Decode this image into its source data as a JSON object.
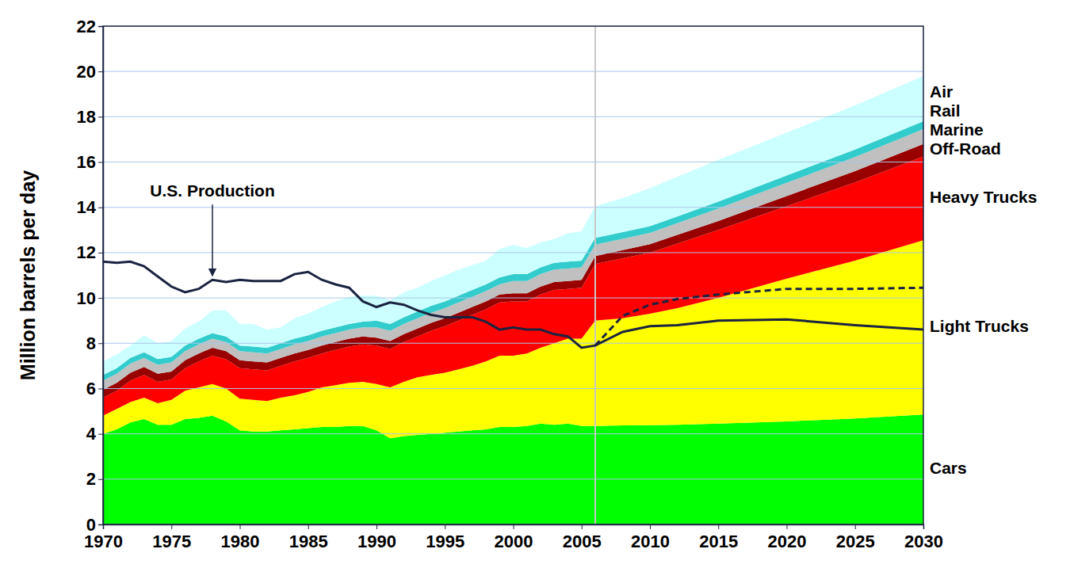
{
  "chart_data": {
    "type": "area",
    "stacked": true,
    "grid": true,
    "ylabel": "Million barrels per day",
    "x": [
      1970,
      1971,
      1972,
      1973,
      1974,
      1975,
      1976,
      1977,
      1978,
      1979,
      1980,
      1981,
      1982,
      1983,
      1984,
      1985,
      1986,
      1987,
      1988,
      1989,
      1990,
      1991,
      1992,
      1993,
      1994,
      1995,
      1996,
      1997,
      1998,
      1999,
      2000,
      2001,
      2002,
      2003,
      2004,
      2005,
      2006,
      2008,
      2010,
      2012,
      2015,
      2020,
      2025,
      2030
    ],
    "xlim": [
      1970,
      2030
    ],
    "xticks": [
      1970,
      1975,
      1980,
      1985,
      1990,
      1995,
      2000,
      2005,
      2010,
      2015,
      2020,
      2025,
      2030
    ],
    "ylim": [
      0,
      22
    ],
    "yticks": [
      0,
      2,
      4,
      6,
      8,
      10,
      12,
      14,
      16,
      18,
      20,
      22
    ],
    "divider": 2006,
    "series": [
      {
        "name": "Cars",
        "color": "#00ff00",
        "type": "area",
        "values": [
          4.0,
          4.2,
          4.5,
          4.65,
          4.4,
          4.4,
          4.65,
          4.7,
          4.8,
          4.55,
          4.15,
          4.1,
          4.1,
          4.15,
          4.2,
          4.25,
          4.3,
          4.3,
          4.35,
          4.35,
          4.15,
          3.8,
          3.9,
          3.95,
          4.0,
          4.05,
          4.1,
          4.15,
          4.2,
          4.3,
          4.3,
          4.35,
          4.45,
          4.4,
          4.45,
          4.35,
          4.35,
          4.37,
          4.38,
          4.4,
          4.45,
          4.55,
          4.68,
          4.85
        ]
      },
      {
        "name": "Light Trucks",
        "color": "#ffff00",
        "type": "area",
        "values": [
          0.8,
          0.9,
          0.9,
          0.95,
          0.95,
          1.1,
          1.25,
          1.35,
          1.4,
          1.45,
          1.4,
          1.4,
          1.35,
          1.45,
          1.5,
          1.6,
          1.75,
          1.85,
          1.9,
          1.95,
          2.05,
          2.25,
          2.4,
          2.55,
          2.6,
          2.65,
          2.75,
          2.85,
          3.0,
          3.15,
          3.15,
          3.2,
          3.35,
          3.6,
          3.75,
          3.85,
          4.65,
          4.73,
          4.92,
          5.15,
          5.55,
          6.3,
          6.97,
          7.7
        ]
      },
      {
        "name": "Heavy Trucks",
        "color": "#ff0000",
        "type": "area",
        "values": [
          0.8,
          0.8,
          0.95,
          1.0,
          0.95,
          0.9,
          1.0,
          1.15,
          1.25,
          1.3,
          1.35,
          1.35,
          1.35,
          1.4,
          1.5,
          1.5,
          1.5,
          1.55,
          1.6,
          1.65,
          1.7,
          1.7,
          1.75,
          1.8,
          1.95,
          2.05,
          2.15,
          2.25,
          2.3,
          2.35,
          2.4,
          2.3,
          2.35,
          2.35,
          2.2,
          2.25,
          2.5,
          2.65,
          2.7,
          2.85,
          3.0,
          3.2,
          3.45,
          3.7
        ]
      },
      {
        "name": "Off-Road",
        "color": "#990000",
        "type": "area",
        "values": [
          0.35,
          0.35,
          0.35,
          0.35,
          0.35,
          0.35,
          0.35,
          0.35,
          0.35,
          0.35,
          0.35,
          0.35,
          0.35,
          0.35,
          0.35,
          0.35,
          0.35,
          0.35,
          0.35,
          0.35,
          0.35,
          0.35,
          0.35,
          0.35,
          0.35,
          0.35,
          0.35,
          0.35,
          0.35,
          0.35,
          0.35,
          0.35,
          0.35,
          0.35,
          0.35,
          0.35,
          0.35,
          0.36,
          0.37,
          0.38,
          0.4,
          0.45,
          0.5,
          0.55
        ]
      },
      {
        "name": "Marine",
        "color": "#c0c0c0",
        "type": "area",
        "values": [
          0.4,
          0.4,
          0.4,
          0.4,
          0.4,
          0.4,
          0.4,
          0.4,
          0.4,
          0.4,
          0.4,
          0.4,
          0.4,
          0.4,
          0.4,
          0.4,
          0.4,
          0.4,
          0.4,
          0.4,
          0.45,
          0.45,
          0.45,
          0.45,
          0.45,
          0.45,
          0.45,
          0.45,
          0.45,
          0.45,
          0.55,
          0.55,
          0.55,
          0.55,
          0.55,
          0.55,
          0.5,
          0.5,
          0.5,
          0.52,
          0.55,
          0.58,
          0.62,
          0.65
        ]
      },
      {
        "name": "Rail",
        "color": "#33cccc",
        "type": "area",
        "values": [
          0.25,
          0.25,
          0.25,
          0.25,
          0.25,
          0.25,
          0.25,
          0.25,
          0.25,
          0.25,
          0.25,
          0.25,
          0.25,
          0.25,
          0.25,
          0.25,
          0.25,
          0.25,
          0.25,
          0.25,
          0.3,
          0.3,
          0.3,
          0.3,
          0.3,
          0.3,
          0.3,
          0.3,
          0.3,
          0.3,
          0.3,
          0.3,
          0.3,
          0.3,
          0.3,
          0.3,
          0.3,
          0.3,
          0.3,
          0.3,
          0.3,
          0.33,
          0.33,
          0.35
        ]
      },
      {
        "name": "Air",
        "color": "#ccffff",
        "type": "area",
        "values": [
          0.6,
          0.6,
          0.55,
          0.75,
          0.7,
          0.7,
          0.75,
          0.75,
          1.0,
          1.15,
          0.95,
          1.0,
          0.8,
          0.7,
          0.9,
          0.95,
          1.05,
          1.15,
          1.2,
          1.15,
          1.1,
          1.05,
          1.1,
          1.05,
          1.1,
          1.15,
          1.15,
          1.1,
          1.05,
          1.25,
          1.3,
          1.15,
          1.1,
          1.05,
          1.25,
          1.3,
          1.4,
          1.49,
          1.68,
          1.75,
          1.85,
          1.89,
          1.95,
          2.0
        ]
      },
      {
        "name": "U.S. Production",
        "color": "#1a2340",
        "type": "line",
        "line_style": "solid",
        "values": [
          11.6,
          11.55,
          11.6,
          11.4,
          10.95,
          10.5,
          10.25,
          10.4,
          10.8,
          10.7,
          10.8,
          10.75,
          10.75,
          10.75,
          11.05,
          11.15,
          10.8,
          10.6,
          10.45,
          9.85,
          9.6,
          9.8,
          9.7,
          9.45,
          9.25,
          9.15,
          9.15,
          9.15,
          8.95,
          8.6,
          8.7,
          8.6,
          8.6,
          8.4,
          8.3,
          7.8,
          7.9,
          8.5,
          8.75,
          8.8,
          9.0,
          9.05,
          8.8,
          8.6
        ]
      },
      {
        "color": "#1a2340",
        "type": "line",
        "line_style": "dashed",
        "values": [
          null,
          null,
          null,
          null,
          null,
          null,
          null,
          null,
          null,
          null,
          null,
          null,
          null,
          null,
          null,
          null,
          null,
          null,
          null,
          null,
          null,
          null,
          null,
          null,
          null,
          null,
          null,
          null,
          null,
          null,
          null,
          null,
          null,
          null,
          null,
          null,
          7.9,
          9.2,
          9.7,
          9.95,
          10.15,
          10.4,
          10.4,
          10.45
        ]
      }
    ]
  }
}
